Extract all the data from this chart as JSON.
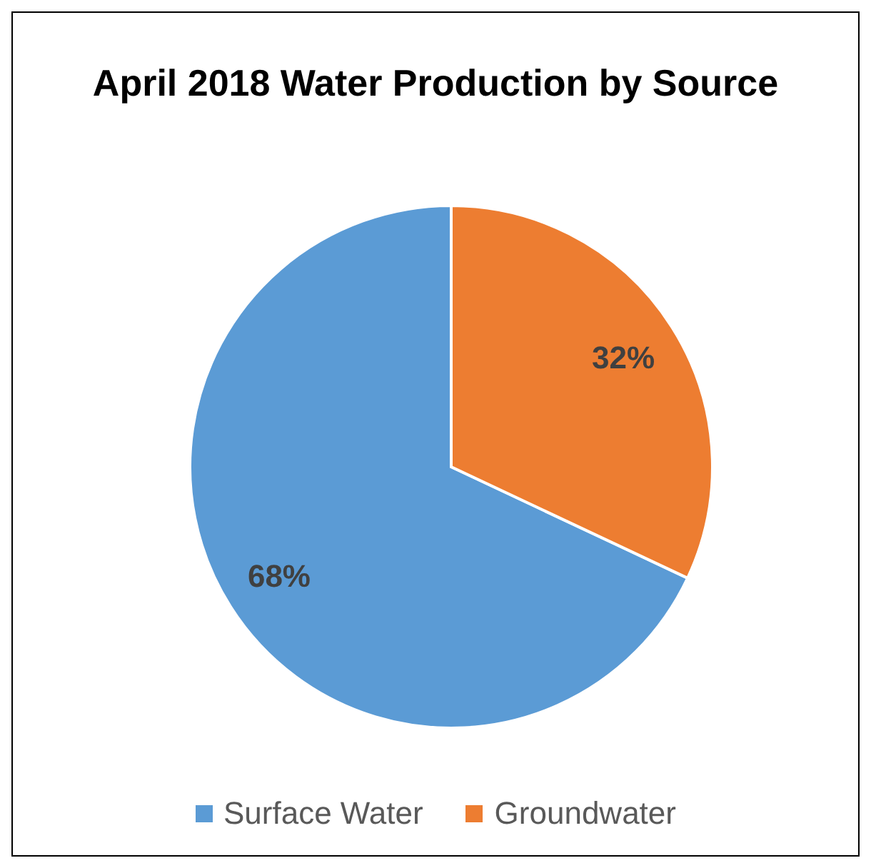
{
  "chart_data": {
    "type": "pie",
    "title": "April 2018 Water Production by Source",
    "categories": [
      "Surface Water",
      "Groundwater"
    ],
    "values": [
      68,
      32
    ],
    "colors": [
      "#5b9bd5",
      "#ed7d31"
    ],
    "value_labels": [
      "68%",
      "32%"
    ],
    "legend": "bottom"
  }
}
